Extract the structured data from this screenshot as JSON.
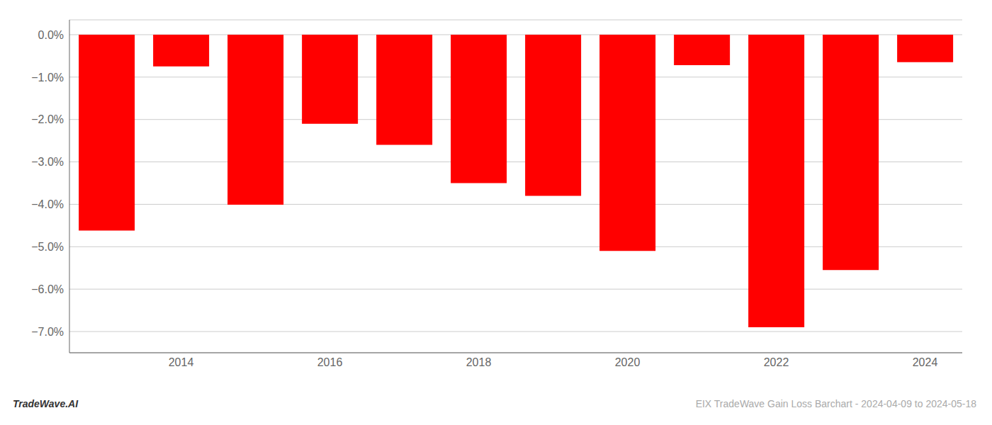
{
  "chart_data": {
    "type": "bar",
    "categories": [
      null,
      "2014",
      null,
      "2016",
      null,
      "2018",
      null,
      "2020",
      null,
      "2022",
      null,
      "2024"
    ],
    "values": [
      -4.62,
      -0.75,
      -4.01,
      -2.1,
      -2.6,
      -3.5,
      -3.8,
      -5.1,
      -0.72,
      -6.9,
      -5.55,
      -0.65
    ],
    "color": "#ff0000",
    "ylim": [
      -7.5,
      0.35
    ],
    "yticks": [
      {
        "value": 0.0,
        "label": "0.0%"
      },
      {
        "value": -1.0,
        "label": "−1.0%"
      },
      {
        "value": -2.0,
        "label": "−2.0%"
      },
      {
        "value": -3.0,
        "label": "−3.0%"
      },
      {
        "value": -4.0,
        "label": "−4.0%"
      },
      {
        "value": -5.0,
        "label": "−5.0%"
      },
      {
        "value": -6.0,
        "label": "−6.0%"
      },
      {
        "value": -7.0,
        "label": "−7.0%"
      }
    ],
    "grid": true,
    "annotations": [
      "TradeWave.AI",
      "EIX TradeWave Gain Loss Barchart - 2024-04-09 to 2024-05-18"
    ]
  }
}
